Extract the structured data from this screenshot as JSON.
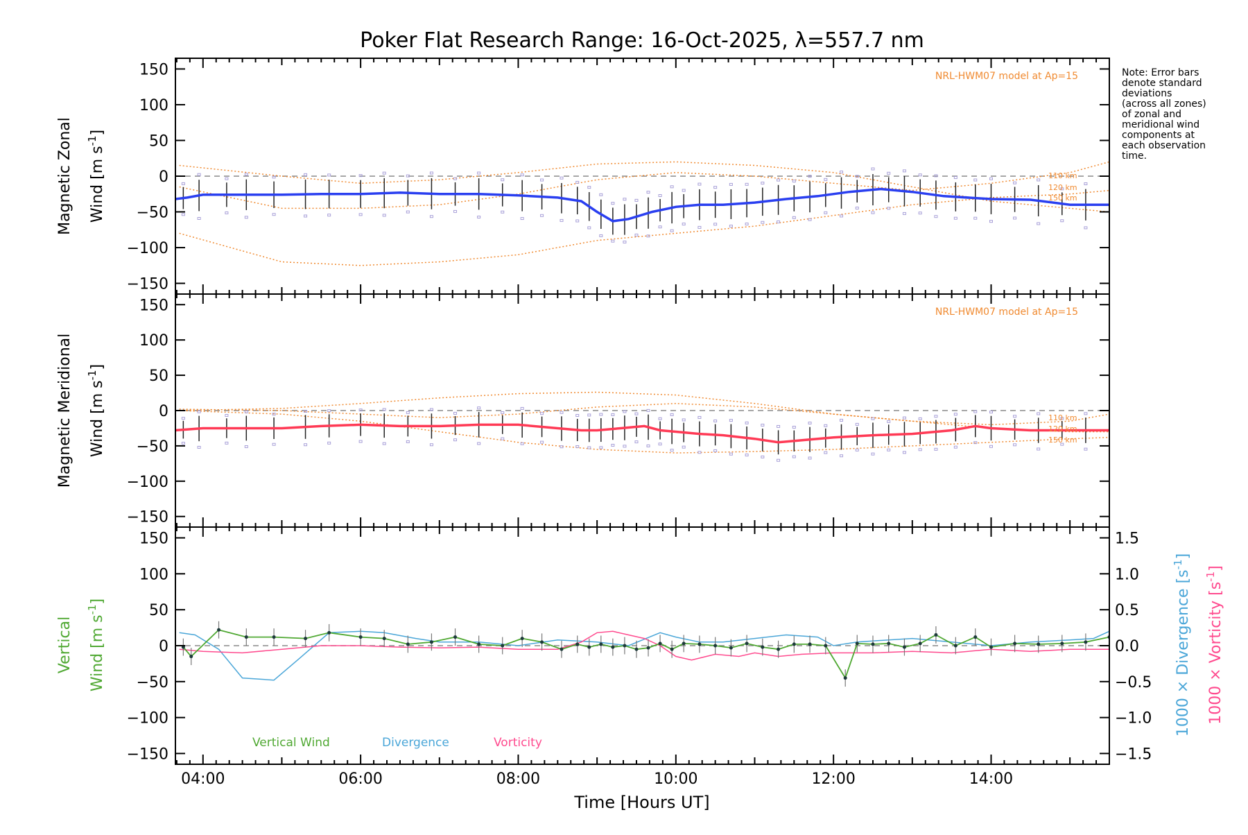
{
  "title": "Poker Flat Research Range: 16-Oct-2025, λ=557.7 nm",
  "note": [
    "Note: Error bars",
    "denote standard",
    "deviations",
    "(across all zones)",
    "of zonal and",
    "meridional wind",
    "components at",
    "each observation",
    "time."
  ],
  "xaxis": {
    "label": "Time [Hours UT]",
    "range": [
      3.65,
      15.5
    ],
    "ticks": [
      4,
      6,
      8,
      10,
      12,
      14
    ],
    "tick_labels": [
      "04:00",
      "06:00",
      "08:00",
      "10:00",
      "12:00",
      "14:00"
    ]
  },
  "yaxis": {
    "range": [
      -165,
      165
    ],
    "ticks": [
      150,
      100,
      50,
      0,
      -50,
      -100,
      -150
    ],
    "tick_labels": [
      "150",
      "100",
      "50",
      "0",
      "−50",
      "−100",
      "−150"
    ]
  },
  "colors": {
    "zonal": "#2a3ff0",
    "zonal_recent": "#5aa8e0",
    "meridional": "#ff3a55",
    "model": "#f08a30",
    "vertical": "#4fa832",
    "divergence": "#4aa6d8",
    "vorticity": "#ff4a8e",
    "zones": "#a8a0d8",
    "errbar": "#222222",
    "axis": "#000000",
    "zero": "#888888"
  },
  "chart_data": [
    {
      "type": "line",
      "panel": "zonal",
      "ylabel_line1": "Magnetic Zonal",
      "ylabel_line2": "Wind [m s",
      "ylabel_exp": "-1",
      "ylabel_tail": "]",
      "ylim": [
        -165,
        165
      ],
      "model_label": "NRL-HWM07 model at Ap=15",
      "model_alt_labels": [
        "110 km",
        "120 km",
        "150 km"
      ],
      "model_curves": [
        {
          "x": [
            3.7,
            5,
            6,
            7,
            8,
            9,
            10,
            11,
            12,
            13,
            14,
            15,
            15.5
          ],
          "y": [
            15,
            0,
            -10,
            -5,
            5,
            17,
            20,
            15,
            5,
            -15,
            -35,
            -45,
            -50
          ]
        },
        {
          "x": [
            3.7,
            5,
            6,
            7,
            8,
            9,
            10,
            11,
            12,
            13,
            14,
            15,
            15.5
          ],
          "y": [
            -15,
            -45,
            -45,
            -40,
            -25,
            -5,
            5,
            0,
            -10,
            -20,
            -10,
            5,
            20
          ]
        },
        {
          "x": [
            3.7,
            5,
            6,
            7,
            8,
            9,
            10,
            11,
            12,
            13,
            14,
            15,
            15.5
          ],
          "y": [
            -80,
            -120,
            -125,
            -120,
            -110,
            -90,
            -80,
            -70,
            -55,
            -40,
            -30,
            -25,
            -20
          ]
        }
      ],
      "series": [
        {
          "name": "Magnetic Zonal Wind",
          "x": [
            3.65,
            3.8,
            4,
            4.5,
            5,
            5.5,
            6,
            6.5,
            7,
            7.5,
            8,
            8.5,
            8.8,
            9,
            9.2,
            9.4,
            9.7,
            10,
            10.3,
            10.6,
            11,
            11.4,
            11.8,
            12.2,
            12.6,
            13,
            13.4,
            14,
            14.5,
            15,
            15.5
          ],
          "y": [
            -32,
            -30,
            -26,
            -26,
            -26,
            -25,
            -25,
            -23,
            -25,
            -25,
            -27,
            -30,
            -35,
            -50,
            -63,
            -60,
            -50,
            -43,
            -40,
            -40,
            -37,
            -32,
            -28,
            -22,
            -18,
            -22,
            -28,
            -32,
            -33,
            -40,
            -40
          ]
        }
      ],
      "error_bar_x": [
        3.75,
        3.95,
        4.3,
        4.55,
        4.9,
        5.3,
        5.6,
        6.0,
        6.3,
        6.6,
        6.9,
        7.2,
        7.5,
        7.8,
        8.05,
        8.3,
        8.55,
        8.75,
        8.9,
        9.05,
        9.2,
        9.35,
        9.5,
        9.65,
        9.8,
        9.95,
        10.1,
        10.3,
        10.5,
        10.7,
        10.9,
        11.1,
        11.3,
        11.5,
        11.7,
        11.9,
        12.1,
        12.3,
        12.5,
        12.7,
        12.9,
        13.1,
        13.3,
        13.55,
        13.8,
        14.0,
        14.3,
        14.6,
        14.9,
        15.2
      ],
      "error_bar_half_width": 22
    },
    {
      "type": "line",
      "panel": "meridional",
      "ylabel_line1": "Magnetic Meridional",
      "ylabel_line2": "Wind [m s",
      "ylabel_exp": "-1",
      "ylabel_tail": "]",
      "ylim": [
        -165,
        165
      ],
      "model_label": "NRL-HWM07 model at Ap=15",
      "model_alt_labels": [
        "110 km",
        "120 km",
        "150 km"
      ],
      "model_curves": [
        {
          "x": [
            3.7,
            5,
            6,
            7,
            8,
            9,
            10,
            11,
            12,
            13,
            14,
            15,
            15.5
          ],
          "y": [
            0,
            3,
            10,
            18,
            24,
            26,
            22,
            10,
            -5,
            -15,
            -20,
            -15,
            -5
          ]
        },
        {
          "x": [
            3.7,
            5,
            6,
            7,
            8,
            9,
            10,
            11,
            12,
            13,
            14,
            15,
            15.5
          ],
          "y": [
            2,
            0,
            -5,
            -10,
            -5,
            5,
            10,
            5,
            -5,
            -15,
            -25,
            -30,
            -30
          ]
        },
        {
          "x": [
            3.7,
            5,
            6,
            7,
            8,
            9,
            10,
            11,
            12,
            13,
            14,
            15,
            15.5
          ],
          "y": [
            0,
            -5,
            -15,
            -30,
            -45,
            -55,
            -60,
            -58,
            -55,
            -50,
            -45,
            -40,
            -38
          ]
        }
      ],
      "series": [
        {
          "name": "Magnetic Meridional Wind",
          "x": [
            3.65,
            4,
            4.5,
            5,
            5.5,
            6,
            6.5,
            7,
            7.5,
            8,
            8.5,
            8.8,
            9,
            9.3,
            9.6,
            9.8,
            10,
            10.3,
            10.6,
            11,
            11.3,
            11.6,
            12,
            12.5,
            13,
            13.5,
            13.8,
            14,
            14.5,
            15,
            15.5
          ],
          "y": [
            -28,
            -25,
            -25,
            -25,
            -22,
            -20,
            -22,
            -22,
            -20,
            -20,
            -25,
            -28,
            -28,
            -25,
            -22,
            -28,
            -30,
            -33,
            -35,
            -40,
            -45,
            -42,
            -38,
            -35,
            -33,
            -28,
            -22,
            -25,
            -28,
            -28,
            -28
          ]
        }
      ],
      "error_bar_x": [
        3.75,
        3.95,
        4.3,
        4.55,
        4.9,
        5.3,
        5.6,
        6.0,
        6.3,
        6.6,
        6.9,
        7.2,
        7.5,
        7.8,
        8.05,
        8.3,
        8.55,
        8.75,
        8.9,
        9.05,
        9.2,
        9.35,
        9.5,
        9.65,
        9.8,
        9.95,
        10.1,
        10.3,
        10.5,
        10.7,
        10.9,
        11.1,
        11.3,
        11.5,
        11.7,
        11.9,
        12.1,
        12.3,
        12.5,
        12.7,
        12.9,
        13.1,
        13.3,
        13.55,
        13.8,
        14.0,
        14.3,
        14.6,
        14.9,
        15.2
      ],
      "error_bar_half_width": 18
    },
    {
      "type": "line",
      "panel": "vertical",
      "ylabel_line1": "Vertical",
      "ylabel_line2": "Wind [m s",
      "ylabel_exp": "-1",
      "ylabel_tail": "]",
      "ylim": [
        -165,
        165
      ],
      "right_ylim": [
        -1.65,
        1.65
      ],
      "right_ticks": [
        1.5,
        1.0,
        0.5,
        0.0,
        -0.5,
        -1.0,
        -1.5
      ],
      "right_tick_labels": [
        "1.5",
        "1.0",
        "0.5",
        "0.0",
        "−0.5",
        "−1.0",
        "−1.5"
      ],
      "right_label_div": "1000 × Divergence [s",
      "right_label_vor": "1000 × Vorticity [s",
      "right_label_exp": "-1",
      "right_label_tail": "]",
      "legend": [
        "Vertical Wind",
        "Divergence",
        "Vorticity"
      ],
      "series": [
        {
          "name": "Vertical Wind",
          "axis": "left",
          "x": [
            3.75,
            3.85,
            4.2,
            4.55,
            4.9,
            5.3,
            5.6,
            6.0,
            6.3,
            6.6,
            6.9,
            7.2,
            7.5,
            7.8,
            8.05,
            8.3,
            8.55,
            8.75,
            8.9,
            9.05,
            9.2,
            9.35,
            9.5,
            9.65,
            9.8,
            9.95,
            10.1,
            10.3,
            10.5,
            10.7,
            10.9,
            11.1,
            11.3,
            11.5,
            11.7,
            11.9,
            12.15,
            12.3,
            12.5,
            12.7,
            12.9,
            13.1,
            13.3,
            13.55,
            13.8,
            14.0,
            14.3,
            14.6,
            14.9,
            15.2,
            15.5
          ],
          "y": [
            -2,
            -15,
            22,
            12,
            12,
            10,
            18,
            12,
            10,
            2,
            5,
            12,
            2,
            0,
            10,
            5,
            -5,
            2,
            -2,
            2,
            -2,
            0,
            -5,
            -3,
            3,
            -5,
            3,
            2,
            0,
            -3,
            3,
            -2,
            -5,
            2,
            2,
            0,
            -45,
            3,
            2,
            3,
            -2,
            3,
            15,
            0,
            12,
            -2,
            3,
            2,
            3,
            5,
            12
          ]
        },
        {
          "name": "Divergence",
          "axis": "right",
          "x": [
            3.7,
            3.9,
            4.2,
            4.5,
            4.9,
            5.2,
            5.6,
            6.0,
            6.3,
            6.7,
            7.0,
            7.5,
            8.0,
            8.5,
            9.0,
            9.4,
            9.8,
            10.0,
            10.3,
            10.6,
            11.0,
            11.4,
            11.8,
            12.0,
            12.3,
            12.7,
            13.0,
            13.5,
            14.0,
            14.5,
            15.0,
            15.3,
            15.5
          ],
          "y": [
            0.18,
            0.15,
            -0.05,
            -0.45,
            -0.48,
            -0.2,
            0.18,
            0.2,
            0.18,
            0.1,
            0.05,
            0.05,
            0.0,
            0.08,
            0.05,
            0.0,
            0.18,
            0.12,
            0.05,
            0.05,
            0.1,
            0.15,
            0.12,
            0.0,
            0.05,
            0.08,
            0.1,
            0.05,
            0.0,
            0.05,
            0.08,
            0.1,
            0.2
          ]
        },
        {
          "name": "Vorticity",
          "axis": "right",
          "x": [
            3.7,
            4.0,
            4.5,
            5.0,
            5.5,
            6.0,
            6.5,
            7.0,
            7.5,
            8.0,
            8.5,
            8.8,
            9.0,
            9.2,
            9.4,
            9.6,
            9.8,
            10.0,
            10.2,
            10.5,
            10.8,
            11.0,
            11.3,
            11.6,
            12.0,
            12.5,
            13.0,
            13.5,
            14.0,
            14.5,
            15.0,
            15.5
          ],
          "y": [
            -0.05,
            -0.08,
            -0.1,
            -0.05,
            0.0,
            0.0,
            -0.02,
            -0.03,
            -0.02,
            -0.05,
            -0.05,
            0.05,
            0.18,
            0.2,
            0.15,
            0.1,
            0.0,
            -0.15,
            -0.2,
            -0.12,
            -0.15,
            -0.1,
            -0.15,
            -0.12,
            -0.1,
            -0.1,
            -0.08,
            -0.1,
            -0.05,
            -0.08,
            -0.05,
            -0.05
          ]
        }
      ],
      "error_bar_half_width": 12
    }
  ]
}
